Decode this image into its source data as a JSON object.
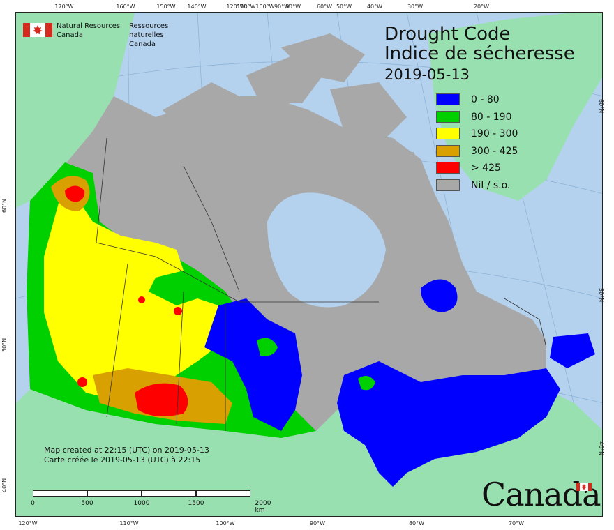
{
  "agency": {
    "name_en_line1": "Natural Resources",
    "name_en_line2": "Canada",
    "name_fr_line1": "Ressources naturelles",
    "name_fr_line2": "Canada"
  },
  "title": {
    "en": "Drought Code",
    "fr": "Indice de sécheresse",
    "date": "2019-05-13"
  },
  "legend": [
    {
      "label": "0 - 80",
      "color": "#0000ff"
    },
    {
      "label": "80 - 190",
      "color": "#00d000"
    },
    {
      "label": "190 - 300",
      "color": "#ffff00"
    },
    {
      "label": "300 - 425",
      "color": "#d8a000"
    },
    {
      "label": "> 425",
      "color": "#ff0000"
    },
    {
      "label": "Nil / s.o.",
      "color": "#a8a8a8"
    }
  ],
  "credit": {
    "line_en": "Map created at 22:15 (UTC) on 2019-05-13",
    "line_fr": "Carte créée le 2019-05-13 (UTC) à 22:15"
  },
  "scale": {
    "labels": [
      "0",
      "500",
      "1000",
      "1500",
      "2000 km"
    ]
  },
  "graticule": {
    "top": [
      "170°W",
      "160°W",
      "150°W",
      "140°W",
      "120°W",
      "110°W",
      "100°W",
      "90°W",
      "80°W",
      "60°W",
      "50°W",
      "40°W",
      "30°W",
      "20°W"
    ],
    "bottom": [
      "120°W",
      "110°W",
      "100°W",
      "90°W",
      "80°W",
      "70°W"
    ],
    "left": [
      "60°N",
      "50°N",
      "40°N"
    ],
    "right": [
      "60°N",
      "50°N",
      "40°N"
    ]
  },
  "wordmark": "Canada",
  "colors": {
    "ocean": "#b4d2ee",
    "foreign_land": "#99e0b0",
    "nil": "#a8a8a8"
  }
}
